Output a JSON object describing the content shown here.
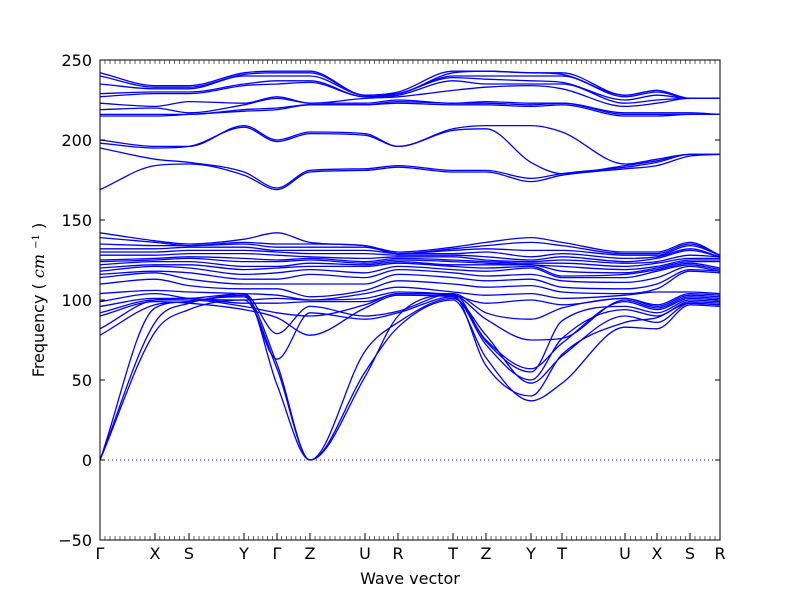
{
  "chart_data": {
    "type": "line",
    "title": "",
    "xlabel": "Wave vector",
    "ylabel": "Frequency",
    "ylabel_unit": "cm",
    "ylabel_unit_exponent": "−1",
    "ylim": [
      -50,
      250
    ],
    "yticks": [
      -50,
      0,
      50,
      100,
      150,
      200,
      250
    ],
    "xticks": [
      "Γ",
      "X",
      "S",
      "Y",
      "Γ",
      "Z",
      "U",
      "R",
      "T",
      "Z",
      "Y",
      "T",
      "U",
      "X",
      "S",
      "R"
    ],
    "series_color": "#0000ff",
    "zero_line": {
      "value": 0,
      "style": "dotted",
      "color": "#0000ff"
    },
    "series": [
      {
        "values": [
          0,
          95,
          99,
          104,
          47,
          0,
          52,
          90,
          103,
          59,
          40,
          66,
          86,
          89,
          98,
          97
        ]
      },
      {
        "values": [
          0,
          80,
          94,
          100,
          57,
          0,
          55,
          83,
          100,
          64,
          37,
          48,
          83,
          82,
          97,
          96
        ]
      },
      {
        "values": [
          0,
          86,
          98,
          102,
          60,
          0,
          68,
          86,
          101,
          78,
          48,
          65,
          90,
          86,
          98,
          97
        ]
      },
      {
        "values": [
          78,
          97,
          99,
          103,
          63,
          92,
          88,
          92,
          102,
          72,
          50,
          76,
          94,
          90,
          99,
          98
        ]
      },
      {
        "values": [
          82,
          100,
          101,
          104,
          79,
          96,
          90,
          93,
          104,
          74,
          55,
          87,
          96,
          92,
          100,
          99
        ]
      },
      {
        "values": [
          90,
          99,
          98,
          94,
          89,
          78,
          95,
          103,
          102,
          75,
          57,
          73,
          99,
          94,
          101,
          100
        ]
      },
      {
        "values": [
          92,
          100,
          100,
          96,
          92,
          90,
          97,
          104,
          103,
          88,
          75,
          76,
          100,
          95,
          102,
          101
        ]
      },
      {
        "values": [
          96,
          101,
          101,
          98,
          98,
          99,
          99,
          104,
          104,
          92,
          88,
          95,
          101,
          96,
          103,
          102
        ]
      },
      {
        "values": [
          99,
          104,
          101,
          100,
          101,
          100,
          101,
          105,
          103,
          98,
          100,
          97,
          101,
          97,
          104,
          103
        ]
      },
      {
        "values": [
          104,
          106,
          105,
          104,
          103,
          100,
          104,
          108,
          105,
          103,
          104,
          101,
          103,
          105,
          105,
          104
        ]
      },
      {
        "values": [
          110,
          113,
          109,
          107,
          107,
          102,
          106,
          112,
          110,
          108,
          109,
          105,
          104,
          107,
          118,
          117
        ]
      },
      {
        "values": [
          114,
          117,
          113,
          110,
          110,
          110,
          110,
          116,
          114,
          112,
          113,
          108,
          107,
          110,
          119,
          118
        ]
      },
      {
        "values": [
          116,
          118,
          117,
          113,
          113,
          116,
          114,
          119,
          117,
          115,
          116,
          112,
          111,
          114,
          121,
          118
        ]
      },
      {
        "values": [
          118,
          121,
          120,
          116,
          117,
          119,
          117,
          121,
          119,
          118,
          120,
          114,
          114,
          118,
          122,
          119
        ]
      },
      {
        "values": [
          120,
          122,
          122,
          119,
          120,
          121,
          121,
          123,
          121,
          120,
          121,
          115,
          116,
          119,
          123,
          120
        ]
      },
      {
        "values": [
          122,
          124,
          124,
          121,
          121,
          123,
          122,
          124,
          122,
          122,
          122,
          118,
          117,
          120,
          124,
          124
        ]
      },
      {
        "values": [
          124,
          125,
          126,
          124,
          124,
          125,
          123,
          125,
          124,
          123,
          122,
          121,
          119,
          121,
          125,
          125
        ]
      },
      {
        "values": [
          125,
          126,
          127,
          126,
          125,
          126,
          124,
          126,
          125,
          124,
          123,
          123,
          121,
          123,
          126,
          126
        ]
      },
      {
        "values": [
          128,
          128,
          129,
          129,
          128,
          127,
          126,
          127,
          127,
          125,
          124,
          125,
          123,
          124,
          128,
          127
        ]
      },
      {
        "values": [
          130,
          130,
          131,
          131,
          130,
          129,
          129,
          128,
          128,
          127,
          125,
          127,
          124,
          126,
          131,
          127
        ]
      },
      {
        "values": [
          132,
          132,
          133,
          133,
          131,
          131,
          131,
          129,
          129,
          130,
          127,
          129,
          126,
          127,
          132,
          127
        ]
      },
      {
        "values": [
          135,
          134,
          134,
          135,
          133,
          133,
          133,
          129,
          131,
          132,
          131,
          131,
          128,
          128,
          134,
          128
        ]
      },
      {
        "values": [
          139,
          136,
          134,
          136,
          135,
          135,
          134,
          129,
          132,
          134,
          136,
          134,
          129,
          129,
          135,
          128
        ]
      },
      {
        "values": [
          142,
          137,
          135,
          138,
          142,
          136,
          134,
          130,
          133,
          136,
          139,
          136,
          130,
          130,
          136,
          128
        ]
      },
      {
        "values": [
          169,
          184,
          185,
          178,
          169,
          180,
          181,
          183,
          180,
          180,
          174,
          178,
          182,
          184,
          190,
          191
        ]
      },
      {
        "values": [
          195,
          188,
          186,
          180,
          170,
          181,
          182,
          184,
          181,
          181,
          176,
          179,
          183,
          186,
          191,
          191
        ]
      },
      {
        "values": [
          198,
          195,
          196,
          208,
          199,
          204,
          203,
          196,
          206,
          207,
          186,
          179,
          184,
          187,
          191,
          191
        ]
      },
      {
        "values": [
          200,
          196,
          196,
          209,
          200,
          205,
          204,
          196,
          207,
          209,
          209,
          205,
          185,
          188,
          191,
          191
        ]
      },
      {
        "values": [
          215,
          215,
          216,
          218,
          219,
          222,
          222,
          223,
          222,
          222,
          221,
          222,
          215,
          215,
          216,
          216
        ]
      },
      {
        "values": [
          216,
          216,
          216,
          219,
          220,
          222,
          222,
          224,
          223,
          223,
          222,
          223,
          216,
          216,
          216,
          216
        ]
      },
      {
        "values": [
          219,
          220,
          217,
          222,
          226,
          223,
          223,
          225,
          223,
          224,
          223,
          223,
          217,
          217,
          217,
          216
        ]
      },
      {
        "values": [
          223,
          221,
          224,
          223,
          227,
          223,
          226,
          227,
          231,
          233,
          234,
          232,
          221,
          223,
          226,
          226
        ]
      },
      {
        "values": [
          227,
          229,
          229,
          234,
          235,
          236,
          227,
          228,
          237,
          235,
          235,
          235,
          223,
          225,
          226,
          226
        ]
      },
      {
        "values": [
          229,
          230,
          230,
          235,
          237,
          237,
          227,
          229,
          239,
          238,
          237,
          236,
          225,
          228,
          226,
          226
        ]
      },
      {
        "values": [
          235,
          232,
          232,
          240,
          240,
          240,
          228,
          229,
          240,
          240,
          240,
          240,
          227,
          230,
          226,
          226
        ]
      },
      {
        "values": [
          240,
          233,
          233,
          241,
          242,
          242,
          228,
          229,
          242,
          243,
          242,
          241,
          228,
          231,
          226,
          226
        ]
      },
      {
        "values": [
          242,
          234,
          234,
          242,
          243,
          243,
          228,
          230,
          243,
          243,
          242,
          242,
          228,
          231,
          226,
          226
        ]
      }
    ]
  }
}
